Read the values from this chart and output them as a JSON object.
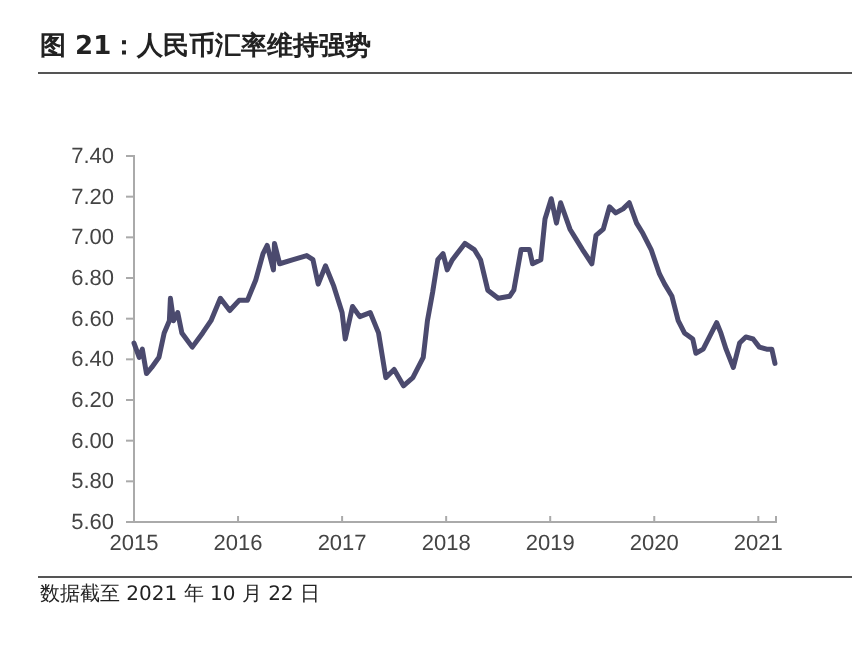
{
  "chart_data": {
    "type": "line",
    "title": "图 21：人民币汇率维持强势",
    "annotations": [
      "数据截至 2021 年 10 月 22 日"
    ],
    "xlim": [
      2015,
      2021.17
    ],
    "xticks": [
      2015,
      2016,
      2017,
      2018,
      2019,
      2020,
      2021
    ],
    "ylim": [
      5.6,
      7.4
    ],
    "yticks": [
      {
        "value": 5.6,
        "label": "5.60"
      },
      {
        "value": 5.8,
        "label": "5.80"
      },
      {
        "value": 6.0,
        "label": "6.00"
      },
      {
        "value": 6.2,
        "label": "6.20"
      },
      {
        "value": 6.4,
        "label": "6.40"
      },
      {
        "value": 6.6,
        "label": "6.60"
      },
      {
        "value": 6.8,
        "label": "6.80"
      },
      {
        "value": 7.0,
        "label": "7.00"
      },
      {
        "value": 7.2,
        "label": "7.20"
      },
      {
        "value": 7.4,
        "label": "7.40"
      }
    ],
    "grid": false,
    "line_style": "solid",
    "marker": "none",
    "series": [
      {
        "color": "#4b4a6e",
        "x": [
          2015.0,
          2015.05,
          2015.08,
          2015.12,
          2015.17,
          2015.24,
          2015.29,
          2015.34,
          2015.35,
          2015.38,
          2015.42,
          2015.46,
          2015.56,
          2015.66,
          2015.74,
          2015.83,
          2015.92,
          2016.01,
          2016.09,
          2016.17,
          2016.24,
          2016.28,
          2016.34,
          2016.35,
          2016.4,
          2016.53,
          2016.66,
          2016.72,
          2016.77,
          2016.84,
          2016.92,
          2017.0,
          2017.03,
          2017.1,
          2017.17,
          2017.27,
          2017.35,
          2017.42,
          2017.5,
          2017.59,
          2017.68,
          2017.78,
          2017.82,
          2017.87,
          2017.92,
          2017.97,
          2018.01,
          2018.06,
          2018.18,
          2018.27,
          2018.33,
          2018.4,
          2018.5,
          2018.61,
          2018.65,
          2018.72,
          2018.8,
          2018.83,
          2018.91,
          2018.95,
          2019.01,
          2019.06,
          2019.1,
          2019.19,
          2019.25,
          2019.31,
          2019.4,
          2019.44,
          2019.51,
          2019.57,
          2019.63,
          2019.7,
          2019.76,
          2019.83,
          2019.89,
          2019.97,
          2020.05,
          2020.1,
          2020.17,
          2020.23,
          2020.29,
          2020.37,
          2020.4,
          2020.47,
          2020.53,
          2020.6,
          2020.64,
          2020.69,
          2020.76,
          2020.82,
          2020.88,
          2020.95,
          2021.01,
          2021.08,
          2021.13,
          2021.16
        ],
        "values": [
          6.48,
          6.41,
          6.45,
          6.33,
          6.36,
          6.41,
          6.53,
          6.59,
          6.7,
          6.59,
          6.63,
          6.53,
          6.46,
          6.53,
          6.59,
          6.7,
          6.64,
          6.69,
          6.69,
          6.79,
          6.92,
          6.96,
          6.84,
          6.97,
          6.87,
          6.89,
          6.91,
          6.89,
          6.77,
          6.86,
          6.76,
          6.63,
          6.5,
          6.66,
          6.61,
          6.63,
          6.53,
          6.31,
          6.35,
          6.27,
          6.31,
          6.41,
          6.59,
          6.73,
          6.89,
          6.92,
          6.84,
          6.89,
          6.97,
          6.94,
          6.89,
          6.74,
          6.7,
          6.71,
          6.74,
          6.94,
          6.94,
          6.87,
          6.89,
          7.09,
          7.19,
          7.07,
          7.17,
          7.04,
          6.99,
          6.94,
          6.87,
          7.01,
          7.04,
          7.15,
          7.12,
          7.14,
          7.17,
          7.07,
          7.02,
          6.94,
          6.82,
          6.77,
          6.71,
          6.59,
          6.53,
          6.5,
          6.43,
          6.45,
          6.51,
          6.58,
          6.53,
          6.45,
          6.36,
          6.48,
          6.51,
          6.5,
          6.46,
          6.45,
          6.45,
          6.38
        ]
      }
    ]
  }
}
